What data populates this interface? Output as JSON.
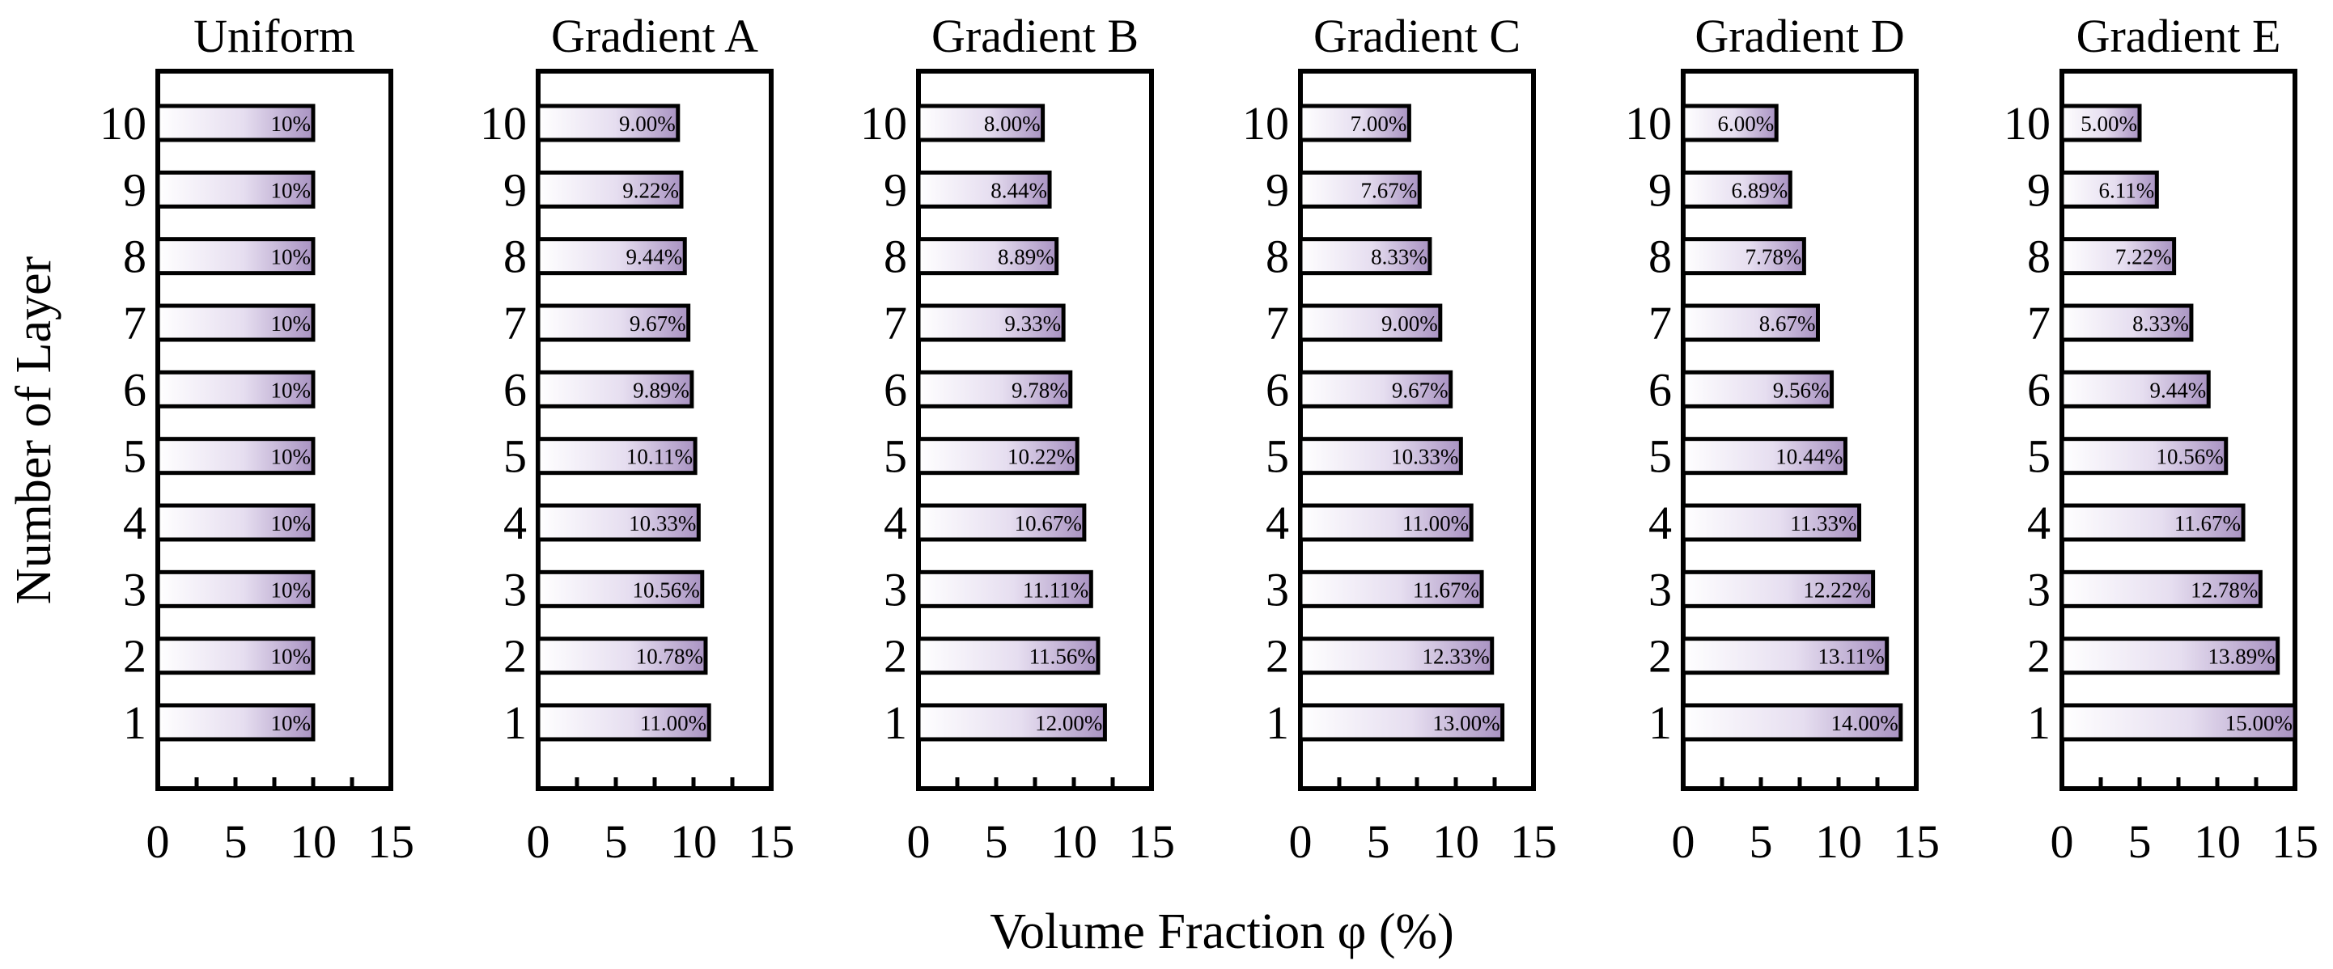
{
  "chart_data": {
    "type": "bar",
    "orientation": "horizontal",
    "xlabel": "Volume Fraction φ (%)",
    "ylabel": "Number of  Layer",
    "xlim": [
      0,
      15
    ],
    "xticks": [
      "0",
      "5",
      "10",
      "15"
    ],
    "layers": [
      "1",
      "2",
      "3",
      "4",
      "5",
      "6",
      "7",
      "8",
      "9",
      "10"
    ],
    "bar_color": "#a993c2",
    "panels": [
      {
        "title": "Uniform",
        "values": [
          10,
          10,
          10,
          10,
          10,
          10,
          10,
          10,
          10,
          10
        ],
        "labels": [
          "10%",
          "10%",
          "10%",
          "10%",
          "10%",
          "10%",
          "10%",
          "10%",
          "10%",
          "10%"
        ]
      },
      {
        "title": "Gradient A",
        "values": [
          11.0,
          10.78,
          10.56,
          10.33,
          10.11,
          9.89,
          9.67,
          9.44,
          9.22,
          9.0
        ],
        "labels": [
          "11.00%",
          "10.78%",
          "10.56%",
          "10.33%",
          "10.11%",
          "9.89%",
          "9.67%",
          "9.44%",
          "9.22%",
          "9.00%"
        ]
      },
      {
        "title": "Gradient B",
        "values": [
          12.0,
          11.56,
          11.11,
          10.67,
          10.22,
          9.78,
          9.33,
          8.89,
          8.44,
          8.0
        ],
        "labels": [
          "12.00%",
          "11.56%",
          "11.11%",
          "10.67%",
          "10.22%",
          "9.78%",
          "9.33%",
          "8.89%",
          "8.44%",
          "8.00%"
        ]
      },
      {
        "title": "Gradient C",
        "values": [
          13.0,
          12.33,
          11.67,
          11.0,
          10.33,
          9.67,
          9.0,
          8.33,
          7.67,
          7.0
        ],
        "labels": [
          "13.00%",
          "12.33%",
          "11.67%",
          "11.00%",
          "10.33%",
          "9.67%",
          "9.00%",
          "8.33%",
          "7.67%",
          "7.00%"
        ]
      },
      {
        "title": "Gradient D",
        "values": [
          14.0,
          13.11,
          12.22,
          11.33,
          10.44,
          9.56,
          8.67,
          7.78,
          6.89,
          6.0
        ],
        "labels": [
          "14.00%",
          "13.11%",
          "12.22%",
          "11.33%",
          "10.44%",
          "9.56%",
          "8.67%",
          "7.78%",
          "6.89%",
          "6.00%"
        ]
      },
      {
        "title": "Gradient E",
        "values": [
          15.0,
          13.89,
          12.78,
          11.67,
          10.56,
          9.44,
          8.33,
          7.22,
          6.11,
          5.0
        ],
        "labels": [
          "15.00%",
          "13.89%",
          "12.78%",
          "11.67%",
          "10.56%",
          "9.44%",
          "8.33%",
          "7.22%",
          "6.11%",
          "5.00%"
        ]
      }
    ]
  }
}
